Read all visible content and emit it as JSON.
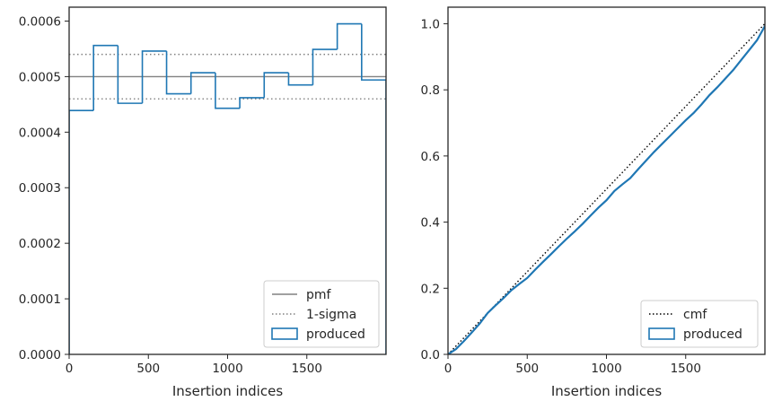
{
  "chart_data": [
    {
      "type": "step-histogram",
      "xlabel": "Insertion indices",
      "ylabel": "",
      "xlim": [
        0,
        2000
      ],
      "ylim": [
        0,
        0.000625
      ],
      "xticks": [
        0,
        500,
        1000,
        1500
      ],
      "xtick_labels": [
        "0",
        "500",
        "1000",
        "1500"
      ],
      "yticks": [
        0,
        0.0001,
        0.0002,
        0.0003,
        0.0004,
        0.0005,
        0.0006
      ],
      "ytick_labels": [
        "0.0000",
        "0.0001",
        "0.0002",
        "0.0003",
        "0.0004",
        "0.0005",
        "0.0006"
      ],
      "bin_edges": [
        0,
        154,
        308,
        462,
        615,
        769,
        923,
        1077,
        1231,
        1385,
        1538,
        1692,
        1846,
        2000
      ],
      "values": [
        0.000439,
        0.000556,
        0.000452,
        0.000546,
        0.000469,
        0.000507,
        0.000443,
        0.000462,
        0.000507,
        0.000485,
        0.000549,
        0.000595,
        0.000494
      ],
      "pmf": 0.0005,
      "sigma_band": [
        0.00046,
        0.00054
      ],
      "legend": {
        "position": "lower right",
        "entries": [
          {
            "label": "pmf",
            "style": "solid",
            "color": "#808080"
          },
          {
            "label": "1-sigma",
            "style": "dotted",
            "color": "#808080"
          },
          {
            "label": "produced",
            "style": "patch",
            "color": "#1f77b4"
          }
        ]
      }
    },
    {
      "type": "line",
      "xlabel": "Insertion indices",
      "ylabel": "",
      "xlim": [
        0,
        2000
      ],
      "ylim": [
        0,
        1.05
      ],
      "xticks": [
        0,
        500,
        1000,
        1500
      ],
      "xtick_labels": [
        "0",
        "500",
        "1000",
        "1500"
      ],
      "yticks": [
        0,
        0.2,
        0.4,
        0.6,
        0.8,
        1.0
      ],
      "ytick_labels": [
        "0.0",
        "0.2",
        "0.4",
        "0.6",
        "0.8",
        "1.0"
      ],
      "series": [
        {
          "name": "cmf",
          "style": "dotted",
          "color": "#000000",
          "x": [
            0,
            2000
          ],
          "y": [
            0,
            1.0
          ]
        },
        {
          "name": "produced",
          "style": "solid",
          "color": "#1f77b4",
          "x": [
            0,
            50,
            100,
            150,
            200,
            250,
            300,
            350,
            400,
            450,
            500,
            550,
            600,
            650,
            700,
            750,
            800,
            850,
            900,
            950,
            1000,
            1050,
            1100,
            1150,
            1200,
            1250,
            1300,
            1350,
            1400,
            1450,
            1500,
            1550,
            1600,
            1650,
            1700,
            1750,
            1800,
            1850,
            1900,
            1950,
            2000
          ],
          "y": [
            0,
            0.016,
            0.04,
            0.066,
            0.093,
            0.125,
            0.148,
            0.17,
            0.194,
            0.213,
            0.231,
            0.256,
            0.28,
            0.303,
            0.327,
            0.35,
            0.372,
            0.395,
            0.42,
            0.444,
            0.466,
            0.494,
            0.514,
            0.533,
            0.56,
            0.586,
            0.612,
            0.636,
            0.66,
            0.684,
            0.708,
            0.73,
            0.756,
            0.784,
            0.808,
            0.834,
            0.86,
            0.89,
            0.92,
            0.95,
            0.993
          ]
        }
      ],
      "legend": {
        "position": "lower right",
        "entries": [
          {
            "label": "cmf",
            "style": "dotted",
            "color": "#000000"
          },
          {
            "label": "produced",
            "style": "patch",
            "color": "#1f77b4"
          }
        ]
      }
    }
  ]
}
